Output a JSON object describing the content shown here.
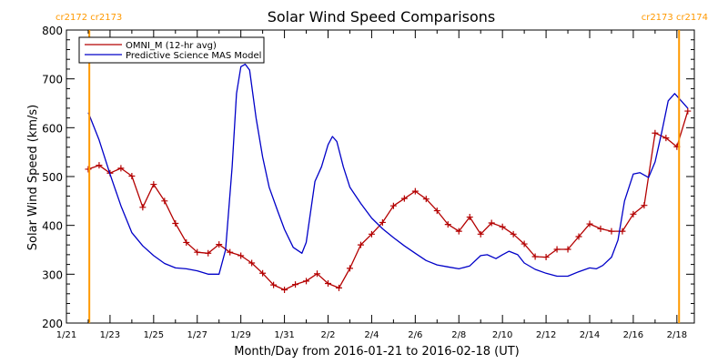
{
  "chart_data": {
    "type": "line",
    "title": "Solar Wind Speed Comparisons",
    "xlabel": "Month/Day from 2016-01-21 to 2016-02-18 (UT)",
    "ylabel": "Solar Wind Speed (km/s)",
    "xlim": [
      0,
      28.8
    ],
    "ylim": [
      200,
      800
    ],
    "x_ticks": [
      {
        "x": 0,
        "label": "1/21"
      },
      {
        "x": 2,
        "label": "1/23"
      },
      {
        "x": 4,
        "label": "1/25"
      },
      {
        "x": 6,
        "label": "1/27"
      },
      {
        "x": 8,
        "label": "1/29"
      },
      {
        "x": 10,
        "label": "1/31"
      },
      {
        "x": 12,
        "label": "2/2"
      },
      {
        "x": 14,
        "label": "2/4"
      },
      {
        "x": 16,
        "label": "2/6"
      },
      {
        "x": 18,
        "label": "2/8"
      },
      {
        "x": 20,
        "label": "2/10"
      },
      {
        "x": 22,
        "label": "2/12"
      },
      {
        "x": 24,
        "label": "2/14"
      },
      {
        "x": 26,
        "label": "2/16"
      },
      {
        "x": 28,
        "label": "2/18"
      }
    ],
    "y_ticks": [
      200,
      300,
      400,
      500,
      600,
      700,
      800
    ],
    "legend_position": "top-left",
    "rotation_markers": [
      {
        "x": 1.05,
        "label": "cr2172 cr2173",
        "side": "left"
      },
      {
        "x": 28.1,
        "label": "cr2173 cr2174",
        "side": "right"
      }
    ],
    "series": [
      {
        "name": "OMNI_M (12-hr avg)",
        "color": "#b40000",
        "marker": "+",
        "points": [
          [
            1.0,
            515
          ],
          [
            1.5,
            523
          ],
          [
            2.0,
            507
          ],
          [
            2.5,
            517
          ],
          [
            3.0,
            501
          ],
          [
            3.5,
            437
          ],
          [
            4.0,
            484
          ],
          [
            4.5,
            450
          ],
          [
            5.0,
            404
          ],
          [
            5.5,
            365
          ],
          [
            6.0,
            345
          ],
          [
            6.5,
            343
          ],
          [
            7.0,
            361
          ],
          [
            7.5,
            345
          ],
          [
            8.0,
            338
          ],
          [
            8.5,
            323
          ],
          [
            9.0,
            302
          ],
          [
            9.5,
            278
          ],
          [
            10.0,
            268
          ],
          [
            10.5,
            279
          ],
          [
            11.0,
            286
          ],
          [
            11.5,
            301
          ],
          [
            12.0,
            281
          ],
          [
            12.5,
            272
          ],
          [
            13.0,
            312
          ],
          [
            13.5,
            360
          ],
          [
            14.0,
            382
          ],
          [
            14.5,
            406
          ],
          [
            15.0,
            440
          ],
          [
            15.5,
            455
          ],
          [
            16.0,
            470
          ],
          [
            16.5,
            454
          ],
          [
            17.0,
            430
          ],
          [
            17.5,
            402
          ],
          [
            18.0,
            388
          ],
          [
            18.5,
            417
          ],
          [
            19.0,
            382
          ],
          [
            19.5,
            405
          ],
          [
            20.0,
            397
          ],
          [
            20.5,
            382
          ],
          [
            21.0,
            362
          ],
          [
            21.5,
            336
          ],
          [
            22.0,
            335
          ],
          [
            22.5,
            351
          ],
          [
            23.0,
            351
          ],
          [
            23.5,
            377
          ],
          [
            24.0,
            403
          ],
          [
            24.5,
            393
          ],
          [
            25.0,
            388
          ],
          [
            25.5,
            388
          ],
          [
            26.0,
            423
          ],
          [
            26.5,
            441
          ],
          [
            27.0,
            589
          ],
          [
            27.5,
            579
          ],
          [
            28.0,
            561
          ],
          [
            28.5,
            634
          ]
        ]
      },
      {
        "name": "Predictive Science MAS Model",
        "color": "#0000c8",
        "marker": "none",
        "points": [
          [
            1.0,
            631
          ],
          [
            1.5,
            575
          ],
          [
            2.0,
            505
          ],
          [
            2.5,
            440
          ],
          [
            3.0,
            385
          ],
          [
            3.5,
            358
          ],
          [
            4.0,
            338
          ],
          [
            4.5,
            322
          ],
          [
            5.0,
            313
          ],
          [
            5.5,
            311
          ],
          [
            6.0,
            307
          ],
          [
            6.5,
            300
          ],
          [
            7.0,
            300
          ],
          [
            7.3,
            350
          ],
          [
            7.6,
            520
          ],
          [
            7.8,
            670
          ],
          [
            8.0,
            725
          ],
          [
            8.2,
            730
          ],
          [
            8.4,
            718
          ],
          [
            8.7,
            620
          ],
          [
            9.0,
            540
          ],
          [
            9.3,
            478
          ],
          [
            9.7,
            428
          ],
          [
            10.0,
            392
          ],
          [
            10.4,
            355
          ],
          [
            10.8,
            343
          ],
          [
            11.0,
            365
          ],
          [
            11.4,
            490
          ],
          [
            11.7,
            520
          ],
          [
            12.0,
            565
          ],
          [
            12.2,
            582
          ],
          [
            12.4,
            572
          ],
          [
            12.7,
            520
          ],
          [
            13.0,
            478
          ],
          [
            13.5,
            445
          ],
          [
            14.0,
            415
          ],
          [
            14.5,
            393
          ],
          [
            15.0,
            375
          ],
          [
            15.5,
            358
          ],
          [
            16.0,
            343
          ],
          [
            16.5,
            328
          ],
          [
            17.0,
            319
          ],
          [
            17.5,
            315
          ],
          [
            18.0,
            311
          ],
          [
            18.5,
            317
          ],
          [
            19.0,
            338
          ],
          [
            19.3,
            340
          ],
          [
            19.7,
            332
          ],
          [
            20.0,
            340
          ],
          [
            20.3,
            347
          ],
          [
            20.7,
            340
          ],
          [
            21.0,
            323
          ],
          [
            21.5,
            310
          ],
          [
            22.0,
            302
          ],
          [
            22.5,
            296
          ],
          [
            23.0,
            296
          ],
          [
            23.5,
            305
          ],
          [
            24.0,
            313
          ],
          [
            24.3,
            311
          ],
          [
            24.6,
            318
          ],
          [
            25.0,
            335
          ],
          [
            25.3,
            370
          ],
          [
            25.6,
            450
          ],
          [
            26.0,
            505
          ],
          [
            26.3,
            508
          ],
          [
            26.7,
            498
          ],
          [
            27.0,
            530
          ],
          [
            27.3,
            590
          ],
          [
            27.6,
            655
          ],
          [
            27.9,
            670
          ],
          [
            28.2,
            655
          ],
          [
            28.5,
            640
          ]
        ]
      }
    ]
  }
}
